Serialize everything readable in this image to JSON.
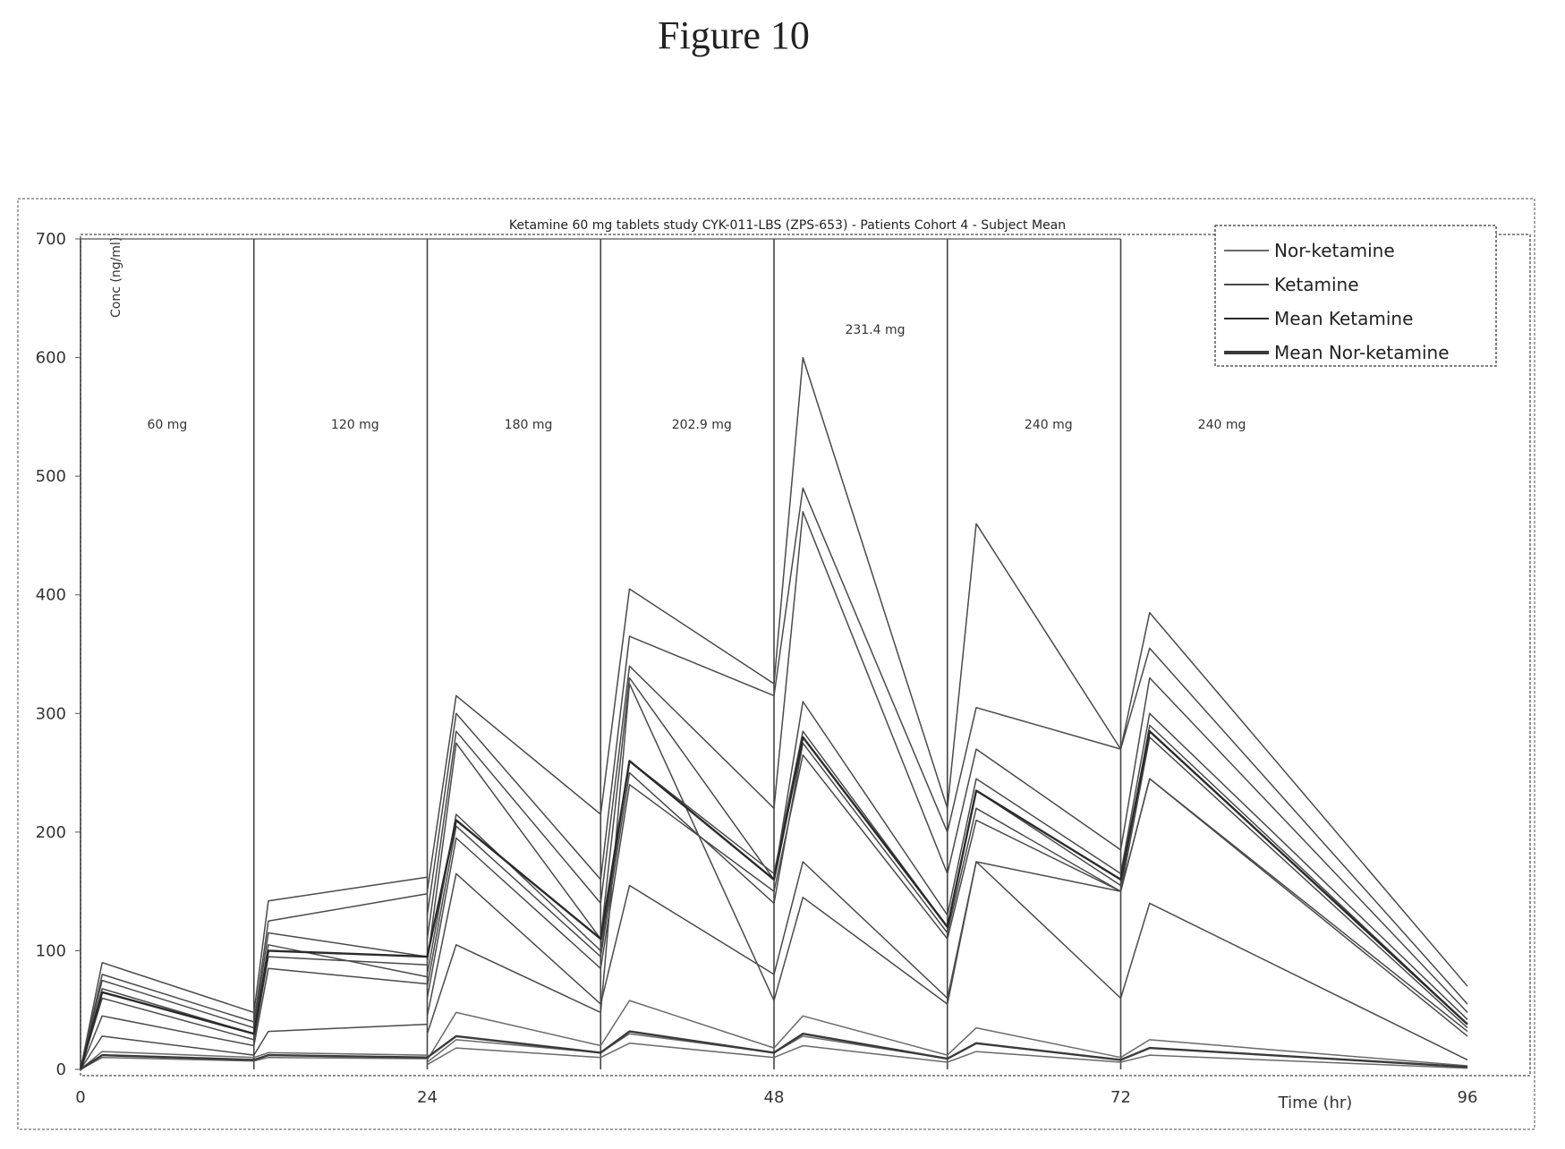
{
  "figure_title": "Figure 10",
  "chart_data": {
    "type": "line",
    "title": "Ketamine 60 mg tablets study CYK-011-LBS (ZPS-653) - Patients Cohort 4 - Subject Mean",
    "ylabel": "Conc (ng/ml)",
    "xlabel": "Time (hr)",
    "xlim": [
      0,
      96
    ],
    "ylim": [
      0,
      700
    ],
    "x_ticks": [
      "0",
      "24",
      "48",
      "72",
      "96"
    ],
    "y_ticks": [
      "0",
      "100",
      "200",
      "300",
      "400",
      "500",
      "600",
      "700"
    ],
    "grid": false,
    "legend_position": "top-right",
    "legend": [
      "Nor-ketamine",
      "Ketamine",
      "Mean Ketamine",
      "Mean Nor-ketamine"
    ],
    "dose_boundaries": [
      0,
      12,
      24,
      36,
      48,
      60,
      72
    ],
    "dose_labels": [
      {
        "x": 6,
        "y": 540,
        "text": "60 mg"
      },
      {
        "x": 19,
        "y": 540,
        "text": "120 mg"
      },
      {
        "x": 31,
        "y": 540,
        "text": "180 mg"
      },
      {
        "x": 43,
        "y": 540,
        "text": "202.9 mg"
      },
      {
        "x": 55,
        "y": 620,
        "text": "231.4 mg"
      },
      {
        "x": 67,
        "y": 540,
        "text": "240 mg"
      },
      {
        "x": 79,
        "y": 540,
        "text": "240 mg"
      }
    ],
    "series": [
      {
        "group": "Ketamine",
        "x": [
          0,
          1.5,
          12,
          13,
          24
        ],
        "y": [
          0,
          90,
          48,
          142,
          162
        ]
      },
      {
        "group": "Ketamine",
        "x": [
          0,
          1.5,
          12,
          13,
          24
        ],
        "y": [
          0,
          80,
          40,
          125,
          148
        ]
      },
      {
        "group": "Ketamine",
        "x": [
          0,
          1.5,
          12,
          13,
          24
        ],
        "y": [
          0,
          75,
          35,
          115,
          95
        ]
      },
      {
        "group": "Ketamine",
        "x": [
          0,
          1.5,
          12,
          13,
          24
        ],
        "y": [
          0,
          68,
          30,
          105,
          78
        ]
      },
      {
        "group": "Ketamine",
        "x": [
          0,
          1.5,
          12,
          13,
          24
        ],
        "y": [
          0,
          60,
          25,
          95,
          88
        ]
      },
      {
        "group": "Ketamine",
        "x": [
          0,
          1.5,
          12,
          13,
          24
        ],
        "y": [
          0,
          45,
          20,
          85,
          72
        ]
      },
      {
        "group": "Ketamine",
        "x": [
          0,
          1.5,
          12,
          13,
          24
        ],
        "y": [
          0,
          28,
          12,
          32,
          38
        ]
      },
      {
        "group": "Ketamine",
        "x": [
          24,
          26,
          36,
          38,
          48,
          50,
          60,
          62,
          72,
          74,
          96
        ],
        "y": [
          150,
          315,
          215,
          405,
          325,
          600,
          220,
          460,
          270,
          385,
          70
        ]
      },
      {
        "group": "Ketamine",
        "x": [
          24,
          26,
          36,
          38,
          48,
          50,
          60,
          62,
          72,
          74,
          96
        ],
        "y": [
          130,
          300,
          160,
          365,
          315,
          490,
          200,
          305,
          270,
          355,
          55
        ]
      },
      {
        "group": "Ketamine",
        "x": [
          24,
          26,
          36,
          38,
          48,
          50,
          60,
          62,
          72,
          74,
          96
        ],
        "y": [
          110,
          285,
          140,
          340,
          220,
          470,
          165,
          270,
          185,
          330,
          48
        ]
      },
      {
        "group": "Ketamine",
        "x": [
          24,
          26,
          36,
          38,
          48,
          50,
          60,
          62,
          72,
          74,
          96
        ],
        "y": [
          90,
          275,
          110,
          330,
          160,
          310,
          130,
          245,
          165,
          300,
          42
        ]
      },
      {
        "group": "Ketamine",
        "x": [
          24,
          26,
          36,
          38,
          48,
          50,
          60,
          62,
          72,
          74,
          96
        ],
        "y": [
          80,
          215,
          100,
          260,
          165,
          285,
          120,
          235,
          155,
          290,
          38
        ]
      },
      {
        "group": "Ketamine",
        "x": [
          24,
          26,
          36,
          38,
          48,
          50,
          60,
          62,
          72,
          74,
          96
        ],
        "y": [
          70,
          205,
          95,
          250,
          140,
          275,
          115,
          220,
          150,
          280,
          35
        ]
      },
      {
        "group": "Ketamine",
        "x": [
          24,
          26,
          36,
          38,
          48,
          50,
          60,
          62,
          72,
          74,
          96
        ],
        "y": [
          60,
          195,
          85,
          240,
          150,
          265,
          110,
          210,
          150,
          245,
          32
        ]
      },
      {
        "group": "Ketamine",
        "x": [
          24,
          26,
          36,
          38,
          48,
          50,
          60,
          62,
          72,
          74,
          96
        ],
        "y": [
          45,
          165,
          55,
          155,
          80,
          175,
          60,
          175,
          60,
          140,
          8
        ]
      },
      {
        "group": "Ketamine",
        "x": [
          24,
          26,
          36,
          38,
          48,
          50,
          60,
          62,
          72,
          74,
          96
        ],
        "y": [
          30,
          105,
          48,
          325,
          58,
          145,
          55,
          175,
          150,
          245,
          28
        ]
      },
      {
        "group": "Nor-ketamine",
        "x": [
          0,
          1.5,
          12,
          13,
          24
        ],
        "y": [
          0,
          15,
          10,
          14,
          12
        ]
      },
      {
        "group": "Nor-ketamine",
        "x": [
          0,
          1.5,
          12,
          13,
          24
        ],
        "y": [
          0,
          10,
          7,
          10,
          9
        ]
      },
      {
        "group": "Nor-ketamine",
        "x": [
          24,
          26,
          36,
          38,
          48,
          50,
          60,
          62,
          72,
          74,
          96
        ],
        "y": [
          8,
          48,
          20,
          58,
          18,
          45,
          12,
          35,
          10,
          25,
          3
        ]
      },
      {
        "group": "Nor-ketamine",
        "x": [
          24,
          26,
          36,
          38,
          48,
          50,
          60,
          62,
          72,
          74,
          96
        ],
        "y": [
          6,
          25,
          14,
          30,
          14,
          28,
          9,
          22,
          8,
          18,
          2
        ]
      },
      {
        "group": "Nor-ketamine",
        "x": [
          24,
          26,
          36,
          38,
          48,
          50,
          60,
          62,
          72,
          74,
          96
        ],
        "y": [
          4,
          18,
          10,
          22,
          10,
          20,
          6,
          15,
          6,
          12,
          1
        ]
      },
      {
        "group": "Mean Ketamine",
        "x": [
          0,
          1.5,
          12,
          13,
          24,
          26,
          36,
          38,
          48,
          50,
          60,
          62,
          72,
          74,
          96
        ],
        "y": [
          0,
          65,
          30,
          100,
          95,
          210,
          110,
          260,
          160,
          280,
          120,
          235,
          160,
          285,
          38
        ]
      },
      {
        "group": "Mean Nor-ketamine",
        "x": [
          0,
          1.5,
          12,
          13,
          24,
          26,
          36,
          38,
          48,
          50,
          60,
          62,
          72,
          74,
          96
        ],
        "y": [
          0,
          12,
          8,
          12,
          10,
          28,
          14,
          32,
          14,
          30,
          9,
          22,
          8,
          18,
          2
        ]
      }
    ]
  },
  "colors": {
    "Ketamine": "#4a4a4a",
    "Nor-ketamine": "#6a6a6a",
    "Mean Ketamine": "#2a2a2a",
    "Mean Nor-ketamine": "#3a3a3a",
    "frame": "#555555"
  }
}
